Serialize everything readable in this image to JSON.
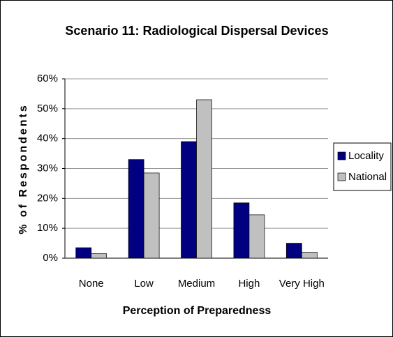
{
  "chart_data": {
    "type": "bar",
    "title": "Scenario 11: Radiological Dispersal Devices",
    "xlabel": "Perception of Preparedness",
    "ylabel": "% of Respondents",
    "categories": [
      "None",
      "Low",
      "Medium",
      "High",
      "Very High"
    ],
    "series": [
      {
        "name": "Locality",
        "color": "#000080",
        "values": [
          3.5,
          33,
          39,
          18.5,
          5
        ]
      },
      {
        "name": "National",
        "color": "#c0c0c0",
        "values": [
          1.5,
          28.5,
          53,
          14.5,
          2
        ]
      }
    ],
    "ylim": [
      0,
      60
    ],
    "yticks": [
      {
        "value": 0,
        "label": "0%"
      },
      {
        "value": 10,
        "label": "10%"
      },
      {
        "value": 20,
        "label": "20%"
      },
      {
        "value": 30,
        "label": "30%"
      },
      {
        "value": 40,
        "label": "40%"
      },
      {
        "value": 50,
        "label": "50%"
      },
      {
        "value": 60,
        "label": "60%"
      }
    ],
    "grid": true,
    "legend": "right"
  }
}
